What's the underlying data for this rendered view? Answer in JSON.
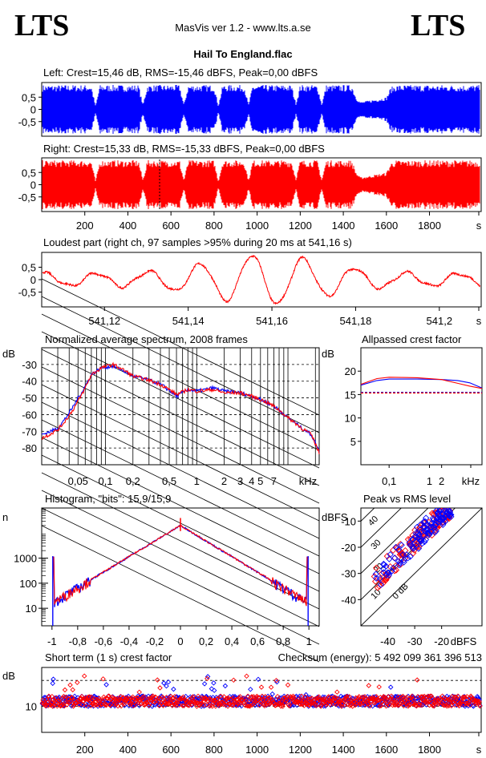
{
  "header": {
    "brand_left": "LTS",
    "brand_right": "LTS",
    "app_title": "MasVis ver 1.2 - www.lts.a.se",
    "file_title": "Hail To England.flac"
  },
  "colors": {
    "left": "#0000ff",
    "right": "#ff0000",
    "grid": "#000000",
    "background": "#ffffff"
  },
  "chart_data": [
    {
      "id": "left-waveform",
      "type": "area",
      "title": "Left: Crest=15,46 dB, RMS=-15,46 dBFS, Peak=0,00 dBFS",
      "channel": "left",
      "ylim": [
        -1,
        1
      ],
      "xlim": [
        0,
        2040
      ],
      "y_ticks": [
        "0,5",
        "0",
        "-0,5"
      ],
      "envelope": {
        "x": [
          0,
          230,
          250,
          270,
          450,
          470,
          490,
          640,
          660,
          680,
          800,
          820,
          840,
          940,
          960,
          980,
          1160,
          1180,
          1200,
          1280,
          1300,
          1320,
          1440,
          1460,
          1480,
          1600,
          1620,
          1640,
          2030
        ],
        "amp": [
          1.0,
          1.0,
          0.15,
          1.0,
          1.0,
          0.2,
          1.0,
          1.0,
          0.2,
          1.0,
          1.0,
          0.15,
          1.0,
          1.0,
          0.2,
          1.0,
          1.0,
          0.25,
          1.0,
          1.0,
          0.2,
          1.0,
          1.0,
          0.5,
          0.3,
          0.5,
          0.9,
          1.0,
          1.0
        ]
      }
    },
    {
      "id": "right-waveform",
      "type": "area",
      "title": "Right: Crest=15,33 dB, RMS=-15,33 dBFS, Peak=0,00 dBFS",
      "channel": "right",
      "ylim": [
        -1,
        1
      ],
      "xlim": [
        0,
        2040
      ],
      "y_ticks": [
        "0,5",
        "0",
        "-0,5"
      ],
      "x_ticks": [
        "200",
        "400",
        "600",
        "800",
        "1000",
        "1200",
        "1400",
        "1600",
        "1800",
        "s"
      ],
      "envelope": {
        "x": [
          0,
          230,
          250,
          270,
          450,
          470,
          490,
          640,
          660,
          680,
          800,
          820,
          840,
          940,
          960,
          980,
          1160,
          1180,
          1200,
          1280,
          1300,
          1320,
          1440,
          1460,
          1480,
          1600,
          1620,
          1640,
          2030
        ],
        "amp": [
          1.0,
          1.0,
          0.15,
          1.0,
          1.0,
          0.2,
          1.0,
          1.0,
          0.2,
          1.0,
          1.0,
          0.15,
          1.0,
          1.0,
          0.2,
          1.0,
          1.0,
          0.25,
          1.0,
          1.0,
          0.2,
          1.0,
          1.0,
          0.5,
          0.3,
          0.5,
          0.9,
          1.0,
          1.0
        ]
      }
    },
    {
      "id": "loudest-part",
      "type": "line",
      "title": "Loudest part (right ch, 97 samples >95% during 20 ms at 541,16 s)",
      "channel": "right",
      "xlim": [
        541.105,
        541.21
      ],
      "ylim": [
        -1,
        1
      ],
      "y_ticks": [
        "0,5",
        "0",
        "-0,5"
      ],
      "x_ticks": [
        "541,12",
        "541,14",
        "541,16",
        "541,18",
        "541,2",
        "s"
      ]
    },
    {
      "id": "average-spectrum",
      "type": "line",
      "title": "Normalized average spectrum, 2008 frames",
      "ylabel": "dB",
      "xlabel": "kHz",
      "xscale": "log",
      "xlim": [
        0.02,
        22
      ],
      "ylim": [
        -90,
        -20
      ],
      "y_ticks": [
        "-30",
        "-40",
        "-50",
        "-60",
        "-70",
        "-80"
      ],
      "x_ticks": [
        "0,05",
        "0,1",
        "0,2",
        "0,5",
        "1",
        "2",
        "3",
        "4",
        "5",
        "7",
        "kHz"
      ],
      "series": [
        {
          "channel": "left",
          "x": [
            0.02,
            0.03,
            0.05,
            0.07,
            0.09,
            0.12,
            0.2,
            0.4,
            0.6,
            0.8,
            1.0,
            1.5,
            2.0,
            3.0,
            4.0,
            5.0,
            7.0,
            10.0,
            14.0,
            18.0,
            22.0
          ],
          "y": [
            -72,
            -68,
            -50,
            -36,
            -32,
            -31,
            -37,
            -42,
            -49,
            -45,
            -46,
            -44,
            -46,
            -47,
            -49,
            -51,
            -55,
            -62,
            -68,
            -72,
            -82
          ]
        },
        {
          "channel": "right",
          "x": [
            0.02,
            0.03,
            0.05,
            0.07,
            0.09,
            0.12,
            0.2,
            0.4,
            0.6,
            0.8,
            1.0,
            1.5,
            2.0,
            3.0,
            4.0,
            5.0,
            7.0,
            10.0,
            14.0,
            18.0,
            22.0
          ],
          "y": [
            -74,
            -69,
            -52,
            -36,
            -32,
            -30,
            -37,
            -42,
            -48,
            -45,
            -46,
            -45,
            -47,
            -47,
            -49,
            -51,
            -55,
            -62,
            -68,
            -72,
            -83
          ]
        }
      ]
    },
    {
      "id": "allpassed-crest",
      "type": "line",
      "title": "Allpassed crest factor",
      "ylabel": "dB",
      "xlabel": "kHz",
      "xscale": "log",
      "xlim": [
        0.02,
        20
      ],
      "ylim": [
        0,
        25
      ],
      "y_ticks": [
        "20",
        "15",
        "10",
        "5"
      ],
      "x_ticks": [
        "0,1",
        "1",
        "2",
        "kHz"
      ],
      "series": [
        {
          "channel": "left",
          "x": [
            0.02,
            0.05,
            0.1,
            0.5,
            2,
            5,
            10,
            20
          ],
          "y": [
            17,
            18,
            18.3,
            18.3,
            18.2,
            18,
            17.5,
            16.4
          ]
        },
        {
          "channel": "right",
          "x": [
            0.02,
            0.05,
            0.1,
            0.5,
            2,
            5,
            10,
            20
          ],
          "y": [
            17.2,
            18.4,
            18.7,
            18.6,
            18.2,
            17.4,
            16.8,
            16.3
          ]
        }
      ],
      "reference_lines": [
        {
          "channel": "left",
          "y": 15.46
        },
        {
          "channel": "right",
          "y": 15.33
        }
      ]
    },
    {
      "id": "histogram",
      "type": "line",
      "title": "Histogram, \"bits\": 15,9/15,9",
      "ylabel": "n",
      "yscale": "log",
      "xlim": [
        -1.08,
        1.08
      ],
      "ylim": [
        2,
        100000
      ],
      "y_ticks": [
        "1000",
        "100",
        "10"
      ],
      "x_ticks": [
        "-1",
        "-0,8",
        "-0,6",
        "-0,4",
        "-0,2",
        "0",
        "0,2",
        "0,4",
        "0,6",
        "0,8",
        "1"
      ]
    },
    {
      "id": "peak-vs-rms",
      "type": "scatter",
      "title": "Peak vs RMS level",
      "ylabel": "dBFS",
      "xlabel": "dBFS",
      "xlim": [
        -50,
        -5
      ],
      "ylim": [
        -50,
        -5
      ],
      "x_ticks": [
        "-40",
        "-30",
        "-20"
      ],
      "y_ticks": [
        "-10",
        "-20",
        "-30",
        "-40"
      ],
      "diagonal_labels": [
        "40",
        "30",
        "20",
        "10",
        "0 dB"
      ]
    },
    {
      "id": "short-term-crest",
      "type": "scatter",
      "title": "Short term (1 s) crest factor",
      "note": "Checksum (energy):  5 492 099 361 396 513",
      "ylabel": "dB",
      "xlim": [
        0,
        2040
      ],
      "ylim": [
        0,
        25
      ],
      "y_ticks": [
        "10"
      ],
      "x_ticks": [
        "200",
        "400",
        "600",
        "800",
        "1000",
        "1200",
        "1400",
        "1600",
        "1800",
        "s"
      ]
    }
  ]
}
